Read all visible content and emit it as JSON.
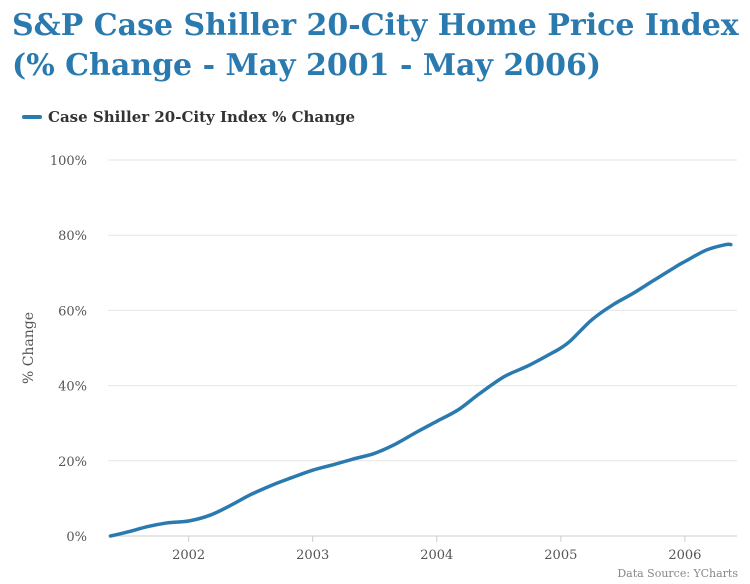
{
  "title_line1": "S&P Case Shiller 20-City Home Price Index",
  "title_line2": "(% Change - May 2001 - May 2006)",
  "source": "Data Source: YCharts",
  "chart_data": {
    "type": "line",
    "title": "S&P Case Shiller 20-City Home Price Index (% Change - May 2001 - May 2006)",
    "xlabel": "",
    "ylabel": "% Change",
    "x_ticks": [
      "2002",
      "2003",
      "2004",
      "2005",
      "2006"
    ],
    "y_ticks": [
      "0%",
      "20%",
      "40%",
      "60%",
      "80%",
      "100%"
    ],
    "ylim": [
      0,
      100
    ],
    "xlim": [
      2001.35,
      2006.42
    ],
    "grid": true,
    "legend_position": "top-left",
    "series": [
      {
        "name": "Case Shiller 20-City Index % Change",
        "color": "#2a7ab0",
        "x": [
          2001.37,
          2001.5,
          2001.67,
          2001.83,
          2002.0,
          2002.17,
          2002.33,
          2002.5,
          2002.67,
          2002.83,
          2003.0,
          2003.17,
          2003.33,
          2003.5,
          2003.67,
          2003.83,
          2004.0,
          2004.17,
          2004.33,
          2004.5,
          2004.58,
          2004.75,
          2004.92,
          2005.0,
          2005.08,
          2005.25,
          2005.42,
          2005.58,
          2005.75,
          2005.92,
          2006.0,
          2006.17,
          2006.33,
          2006.37
        ],
        "y": [
          0.0,
          1.0,
          2.5,
          3.5,
          4.0,
          5.5,
          8.0,
          11.0,
          13.5,
          15.5,
          17.5,
          19.0,
          20.5,
          22.0,
          24.5,
          27.5,
          30.5,
          33.5,
          37.5,
          41.5,
          43.0,
          45.5,
          48.5,
          50.0,
          52.0,
          57.5,
          61.5,
          64.5,
          68.0,
          71.5,
          73.0,
          76.0,
          77.5,
          77.5
        ]
      }
    ]
  }
}
